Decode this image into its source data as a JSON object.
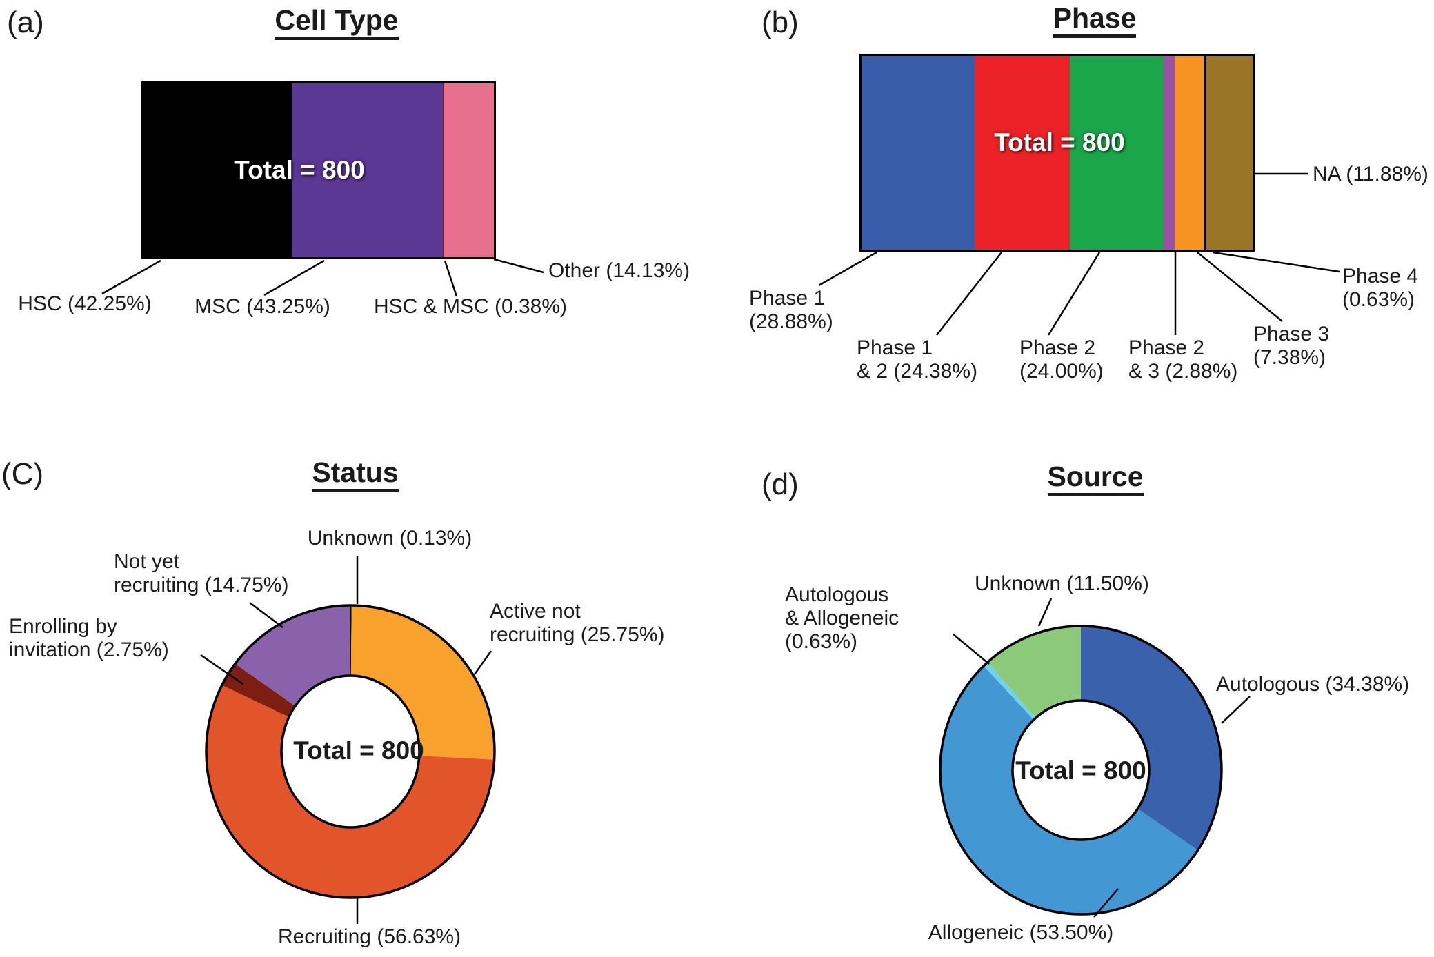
{
  "chart_data": [
    {
      "type": "bar",
      "subtype": "stacked_percent_bar",
      "panel_letter": "(a)",
      "title": "Cell Type",
      "center_label": "Total = 800",
      "total": 800,
      "unit": "%",
      "categories": [
        "HSC",
        "MSC",
        "HSC & MSC",
        "Other"
      ],
      "values": [
        42.25,
        43.25,
        0.38,
        14.13
      ],
      "colors": [
        "#000000",
        "#5B3894",
        "#7A1D12",
        "#E8708F"
      ],
      "labels": [
        "HSC (42.25%)",
        "MSC (43.25%)",
        "HSC & MSC (0.38%)",
        "Other (14.13%)"
      ]
    },
    {
      "type": "bar",
      "subtype": "stacked_percent_bar",
      "panel_letter": "(b)",
      "title": "Phase",
      "center_label": "Total = 800",
      "total": 800,
      "unit": "%",
      "categories": [
        "Phase 1",
        "Phase 1 & 2",
        "Phase 2",
        "Phase 2 & 3",
        "Phase 3",
        "Phase 4",
        "NA"
      ],
      "values": [
        28.88,
        24.38,
        24.0,
        2.88,
        7.38,
        0.63,
        11.88
      ],
      "colors": [
        "#3A5DA9",
        "#EB2227",
        "#1CA64C",
        "#9B51A1",
        "#F79421",
        "#0A0A0A",
        "#9A7527"
      ],
      "labels": [
        "Phase 1\n(28.88%)",
        "Phase 1\n& 2 (24.38%)",
        "Phase 2\n(24.00%)",
        "Phase 2\n& 3 (2.88%)",
        "Phase 3\n(7.38%)",
        "Phase 4\n(0.63%)",
        "NA (11.88%)"
      ]
    },
    {
      "type": "pie",
      "subtype": "donut",
      "panel_letter": "(C)",
      "title": "Status",
      "center_label": "Total = 800",
      "total": 800,
      "unit": "%",
      "categories": [
        "Unknown",
        "Active not recruiting",
        "Recruiting",
        "Enrolling by invitation",
        "Not yet recruiting"
      ],
      "values": [
        0.13,
        25.75,
        56.63,
        2.75,
        14.75
      ],
      "colors": [
        "#000000",
        "#F8A12C",
        "#E2552A",
        "#7C1E12",
        "#8A62AB"
      ],
      "labels": [
        "Unknown (0.13%)",
        "Active not\nrecruiting (25.75%)",
        "Recruiting (56.63%)",
        "Enrolling by\ninvitation (2.75%)",
        "Not yet\nrecruiting (14.75%)"
      ]
    },
    {
      "type": "pie",
      "subtype": "donut",
      "panel_letter": "(d)",
      "title": "Source",
      "center_label": "Total = 800",
      "total": 800,
      "unit": "%",
      "categories": [
        "Autologous",
        "Allogeneic",
        "Autologous & Allogeneic",
        "Unknown"
      ],
      "values": [
        34.38,
        53.5,
        0.63,
        11.5
      ],
      "colors": [
        "#3A62AC",
        "#4398D4",
        "#72D2EA",
        "#8CC97B"
      ],
      "labels": [
        "Autologous (34.38%)",
        "Allogeneic (53.50%)",
        "Autologous\n& Allogeneic\n(0.63%)",
        "Unknown (11.50%)"
      ]
    }
  ]
}
